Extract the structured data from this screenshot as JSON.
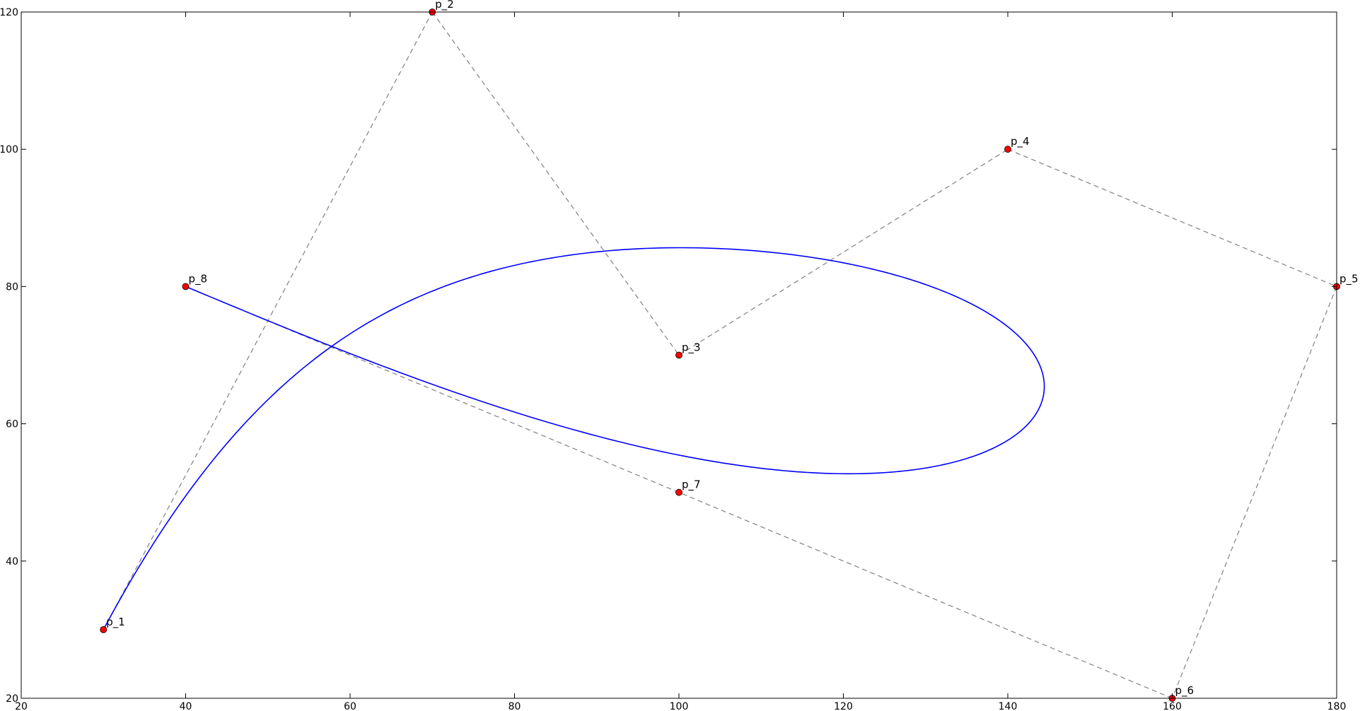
{
  "chart_data": {
    "type": "line",
    "title": "",
    "xlabel": "",
    "ylabel": "",
    "xlim": [
      20,
      180
    ],
    "ylim": [
      20,
      120
    ],
    "xticks": [
      20,
      40,
      60,
      80,
      100,
      120,
      140,
      160,
      180
    ],
    "yticks": [
      20,
      40,
      60,
      80,
      100,
      120
    ],
    "grid": false,
    "control_points": [
      {
        "label": "p_1",
        "x": 30,
        "y": 30
      },
      {
        "label": "p_2",
        "x": 70,
        "y": 120
      },
      {
        "label": "p_3",
        "x": 100,
        "y": 70
      },
      {
        "label": "p_4",
        "x": 140,
        "y": 100
      },
      {
        "label": "p_5",
        "x": 180,
        "y": 80
      },
      {
        "label": "p_6",
        "x": 160,
        "y": 20
      },
      {
        "label": "p_7",
        "x": 100,
        "y": 50
      },
      {
        "label": "p_8",
        "x": 40,
        "y": 80
      }
    ],
    "series": [
      {
        "kind": "bezier-curve",
        "color": "#0000ff"
      },
      {
        "kind": "control-polygon",
        "color": "#808080",
        "style": "dashed"
      },
      {
        "kind": "control-points",
        "color": "#ff0000"
      }
    ]
  }
}
